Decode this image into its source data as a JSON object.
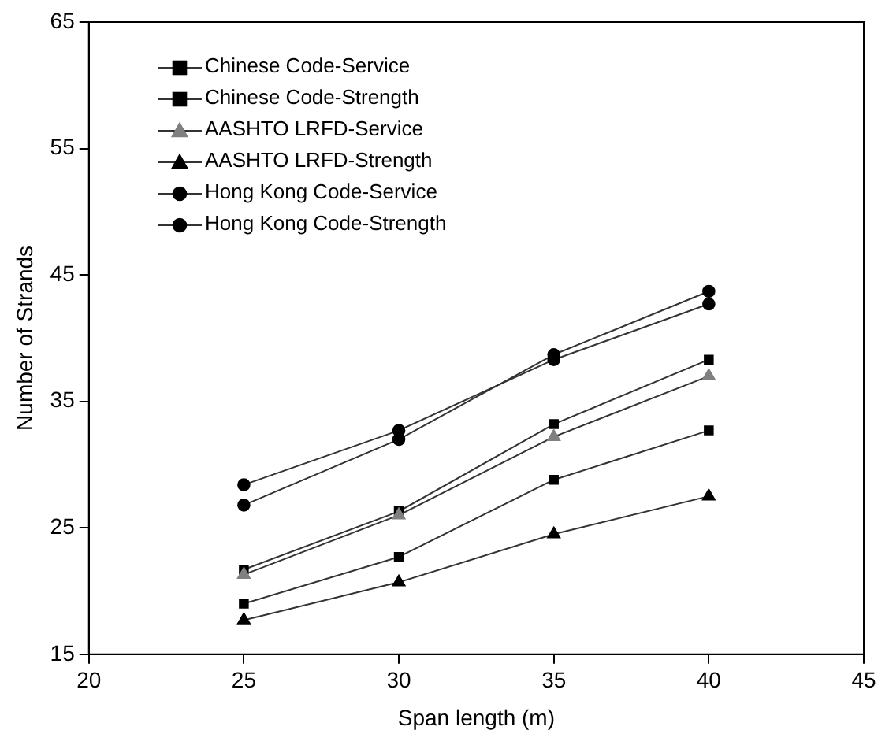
{
  "chart_data": {
    "type": "line",
    "xlabel": "Span length (m)",
    "ylabel": "Number of Strands",
    "x": [
      25,
      30,
      35,
      40
    ],
    "xlim": [
      20,
      45
    ],
    "xticks": [
      20,
      25,
      30,
      35,
      40,
      45
    ],
    "ylim": [
      15,
      65
    ],
    "yticks": [
      15,
      25,
      35,
      45,
      55,
      65
    ],
    "grid": false,
    "legend": "top left",
    "series": [
      {
        "name": "Chinese Code-Service",
        "color": "#000000",
        "marker": "square",
        "values": [
          21.7,
          26.3,
          33.2,
          38.3
        ]
      },
      {
        "name": "Chinese Code-Strength",
        "color": "#000000",
        "marker": "square",
        "values": [
          19,
          22.7,
          28.8,
          32.7
        ]
      },
      {
        "name": "AASHTO LRFD-Service",
        "color": "#808080",
        "marker": "triangle",
        "values": [
          21.3,
          26,
          32.2,
          37
        ]
      },
      {
        "name": "AASHTO LRFD-Strength",
        "color": "#000000",
        "marker": "triangle",
        "values": [
          17.7,
          20.7,
          24.5,
          27.5
        ]
      },
      {
        "name": "Hong Kong Code-Service",
        "color": "#000000",
        "marker": "circle",
        "values": [
          26.8,
          32,
          38.7,
          43.7
        ]
      },
      {
        "name": "Hong Kong Code-Strength",
        "color": "#000000",
        "marker": "circle",
        "values": [
          28.4,
          32.7,
          38.3,
          42.7
        ]
      }
    ]
  }
}
